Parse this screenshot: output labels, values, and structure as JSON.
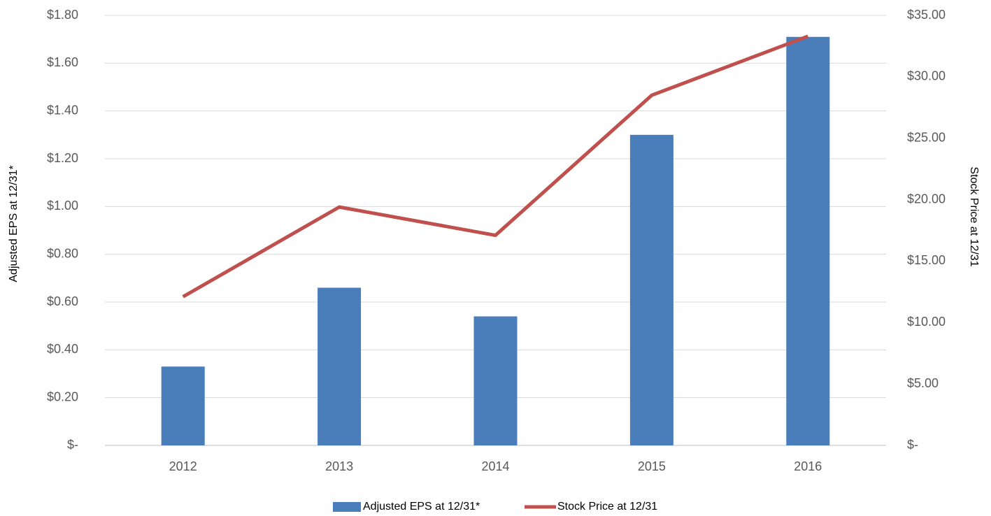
{
  "chart_data": {
    "type": "bar_line",
    "categories": [
      "2012",
      "2013",
      "2014",
      "2015",
      "2016"
    ],
    "series": [
      {
        "name": "Adjusted EPS at 12/31*",
        "type": "bar",
        "color": "#4a7ebb",
        "values": [
          0.33,
          0.66,
          0.54,
          1.3,
          1.71
        ]
      },
      {
        "name": "Stock Price at 12/31",
        "type": "line",
        "axis": "y2",
        "color": "#c0504d",
        "values": [
          12.1,
          19.4,
          17.1,
          28.5,
          33.3
        ]
      }
    ],
    "ylabel": "Adjusted EPS at 12/31*",
    "y2label": "Stock Price at 12/31",
    "ylim": [
      0,
      1.8
    ],
    "yticks": [
      {
        "value": 0,
        "label": "$-"
      },
      {
        "value": 0.2,
        "label": "$0.20"
      },
      {
        "value": 0.4,
        "label": "$0.40"
      },
      {
        "value": 0.6,
        "label": "$0.60"
      },
      {
        "value": 0.8,
        "label": "$0.80"
      },
      {
        "value": 1.0,
        "label": "$1.00"
      },
      {
        "value": 1.2,
        "label": "$1.20"
      },
      {
        "value": 1.4,
        "label": "$1.40"
      },
      {
        "value": 1.6,
        "label": "$1.60"
      },
      {
        "value": 1.8,
        "label": "$1.80"
      }
    ],
    "y2lim": [
      0,
      35
    ],
    "y2ticks": [
      {
        "value": 0,
        "label": "$-"
      },
      {
        "value": 5,
        "label": "$5.00"
      },
      {
        "value": 10,
        "label": "$10.00"
      },
      {
        "value": 15,
        "label": "$15.00"
      },
      {
        "value": 20,
        "label": "$20.00"
      },
      {
        "value": 25,
        "label": "$25.00"
      },
      {
        "value": 30,
        "label": "$30.00"
      },
      {
        "value": 35,
        "label": "$35.00"
      }
    ],
    "grid": true,
    "legend": "bottom"
  }
}
